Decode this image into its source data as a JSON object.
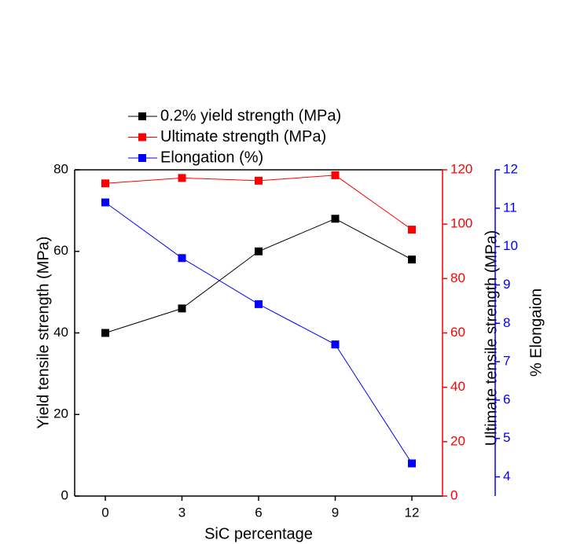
{
  "chart_data": {
    "type": "line",
    "x": [
      0,
      3,
      6,
      9,
      12
    ],
    "xlim": [
      -1.2,
      13.2
    ],
    "xticks": [
      0,
      3,
      6,
      9,
      12
    ],
    "xlabel": "SiC percentage",
    "ylabel": "Yield tensile strength (MPa)",
    "y2label": "Ultimate tensile strength (MPa)",
    "y3label": "% Elongaion",
    "ylim": [
      0,
      80
    ],
    "yticks": [
      0,
      20,
      40,
      60,
      80
    ],
    "y2lim": [
      0,
      120
    ],
    "y2ticks": [
      0,
      20,
      40,
      60,
      80,
      100,
      120
    ],
    "y3lim": [
      3.5,
      12
    ],
    "y3ticks": [
      4,
      5,
      6,
      7,
      8,
      9,
      10,
      11,
      12
    ],
    "series": [
      {
        "name": "0.2% yield strength (MPa)",
        "color": "#000000",
        "axis": "y",
        "values": [
          40,
          46,
          60,
          68,
          58
        ]
      },
      {
        "name": "Ultimate strength (MPa)",
        "color": "#ff0000",
        "axis": "y2",
        "values": [
          115,
          117,
          116,
          118,
          98
        ]
      },
      {
        "name": "Elongation (%)",
        "color": "#0000ff",
        "axis": "y3",
        "values": [
          11.15,
          9.7,
          8.5,
          7.45,
          4.35
        ]
      }
    ]
  }
}
